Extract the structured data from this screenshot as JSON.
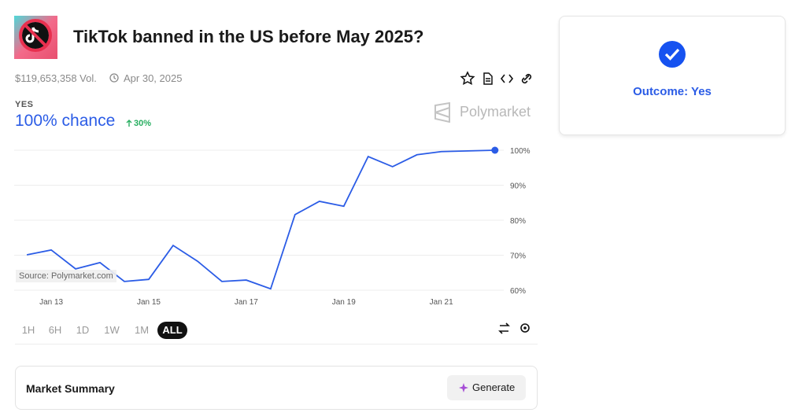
{
  "header": {
    "title": "TikTok banned in the US before May 2025?",
    "volume": "$119,653,358 Vol.",
    "end_date": "Apr 30, 2025"
  },
  "outcome_label": "YES",
  "chance": "100% chance",
  "change": "30%",
  "brand": "Polymarket",
  "source": "Source: Polymarket.com",
  "time_ranges": [
    "1H",
    "6H",
    "1D",
    "1W",
    "1M",
    "ALL"
  ],
  "active_range": "ALL",
  "summary": {
    "title": "Market Summary",
    "button": "Generate"
  },
  "resolution": "Outcome: Yes",
  "chart_data": {
    "type": "line",
    "x": [
      12.5,
      13,
      13.5,
      14,
      14.5,
      15,
      15.5,
      16,
      16.5,
      17,
      17.5,
      18,
      18.5,
      19,
      19.5,
      20,
      20.5,
      21,
      22.1
    ],
    "series": [
      {
        "name": "Yes",
        "color": "#2b5ce6",
        "values": [
          70.1,
          71.5,
          66.1,
          67.9,
          62.5,
          63.1,
          72.8,
          68.3,
          62.5,
          62.9,
          60.4,
          81.6,
          85.4,
          84.0,
          98.2,
          95.3,
          98.7,
          99.6,
          100
        ]
      }
    ],
    "xlim": [
      12.24,
      22.2
    ],
    "xticks": [
      {
        "value": 13,
        "label": "Jan 13"
      },
      {
        "value": 15,
        "label": "Jan 15"
      },
      {
        "value": 17,
        "label": "Jan 17"
      },
      {
        "value": 19,
        "label": "Jan 19"
      },
      {
        "value": 21,
        "label": "Jan 21"
      }
    ],
    "ylim": [
      60,
      100
    ],
    "yticks": [
      {
        "value": 60,
        "label": "60%"
      },
      {
        "value": 70,
        "label": "70%"
      },
      {
        "value": 80,
        "label": "80%"
      },
      {
        "value": 90,
        "label": "90%"
      },
      {
        "value": 100,
        "label": "100%"
      }
    ],
    "grid": true
  }
}
